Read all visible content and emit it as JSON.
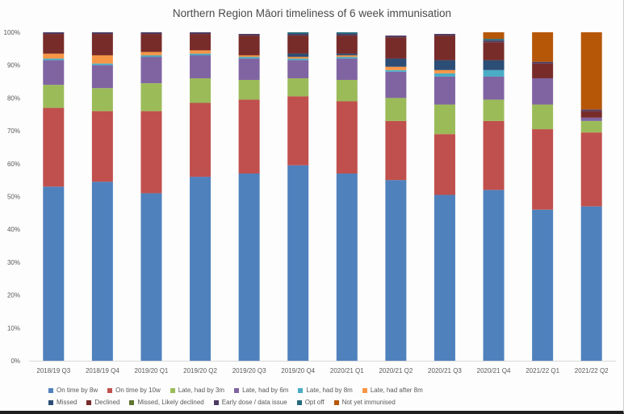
{
  "chart_data": {
    "type": "bar",
    "stacked": true,
    "title": "Northern Region Māori timeliness of 6 week immunisation",
    "xlabel": "",
    "ylabel": "",
    "ylim": [
      0,
      100
    ],
    "yticks": [
      "0%",
      "10%",
      "20%",
      "30%",
      "40%",
      "50%",
      "60%",
      "70%",
      "80%",
      "90%",
      "100%"
    ],
    "grid": false,
    "legend_position": "bottom",
    "categories": [
      "2018/19 Q3",
      "2018/19 Q4",
      "2019/20 Q1",
      "2019/20 Q2",
      "2019/20 Q3",
      "2019/20 Q4",
      "2020/21 Q1",
      "2020/21 Q2",
      "2020/21 Q3",
      "2020/21 Q4",
      "2021/22 Q1",
      "2021/22 Q2"
    ],
    "series": [
      {
        "name": "On time by 8w",
        "color": "#4f81bd",
        "values": [
          53,
          54.5,
          51,
          56,
          57,
          59.5,
          57,
          55,
          50.5,
          52,
          46,
          47
        ]
      },
      {
        "name": "On time by 10w",
        "color": "#c0504d",
        "values": [
          24,
          21.5,
          25,
          22.5,
          22.5,
          21,
          22,
          18,
          18.5,
          21,
          24.5,
          22.5
        ]
      },
      {
        "name": "Late, had by 3m",
        "color": "#9bbb59",
        "values": [
          7,
          7,
          8.5,
          7.5,
          6,
          5.5,
          6.5,
          7,
          9,
          6.5,
          7.5,
          3.5
        ]
      },
      {
        "name": "Late, had by 6m",
        "color": "#8064a2",
        "values": [
          7.5,
          7,
          8,
          7,
          6.5,
          5.5,
          6.5,
          8,
          8.5,
          7,
          8,
          1
        ]
      },
      {
        "name": "Late, had by 8m",
        "color": "#4bacc6",
        "values": [
          0.5,
          0.5,
          0.5,
          0.5,
          0.5,
          0.5,
          0.5,
          0.5,
          1,
          2,
          0,
          0
        ]
      },
      {
        "name": "Late, had after 8m",
        "color": "#f79646",
        "values": [
          1.5,
          2.5,
          1,
          1,
          0.5,
          0.5,
          0.5,
          1,
          1,
          0,
          0,
          0
        ]
      },
      {
        "name": "Missed",
        "color": "#2c4d75",
        "values": [
          0,
          0,
          0,
          0,
          0,
          1,
          0.5,
          2.5,
          3,
          3,
          0,
          0
        ]
      },
      {
        "name": "Declined",
        "color": "#772c2a",
        "values": [
          6,
          6.5,
          5.5,
          5,
          6,
          5.5,
          5.5,
          6.5,
          7.5,
          5.5,
          4.5,
          2
        ]
      },
      {
        "name": "Missed, Likely declined",
        "color": "#5f7530",
        "values": [
          0,
          0,
          0,
          0,
          0,
          0,
          0,
          0,
          0,
          0,
          0,
          0
        ]
      },
      {
        "name": "Early dose / data issue",
        "color": "#4d3b62",
        "values": [
          0.5,
          0.5,
          0.5,
          0.5,
          0.5,
          0.5,
          0.5,
          0.5,
          0.5,
          0.5,
          0.5,
          0.5
        ]
      },
      {
        "name": "Opt off",
        "color": "#276a7c",
        "values": [
          0,
          0,
          0,
          0,
          0,
          0.5,
          0.5,
          0,
          0,
          0.5,
          0,
          0
        ]
      },
      {
        "name": "Not yet immunised",
        "color": "#b65708",
        "values": [
          0,
          0,
          0,
          0,
          0,
          0,
          0,
          0,
          0,
          2,
          9,
          23.5
        ]
      }
    ],
    "legend_rows": [
      [
        "On time by 8w",
        "On time by 10w",
        "Late, had by 3m",
        "Late, had by 6m",
        "Late, had by 8m",
        "Late, had after 8m"
      ],
      [
        "Missed",
        "Declined",
        "Missed, Likely declined",
        "Early dose / data issue",
        "Opt off",
        "Not yet immunised"
      ]
    ]
  }
}
